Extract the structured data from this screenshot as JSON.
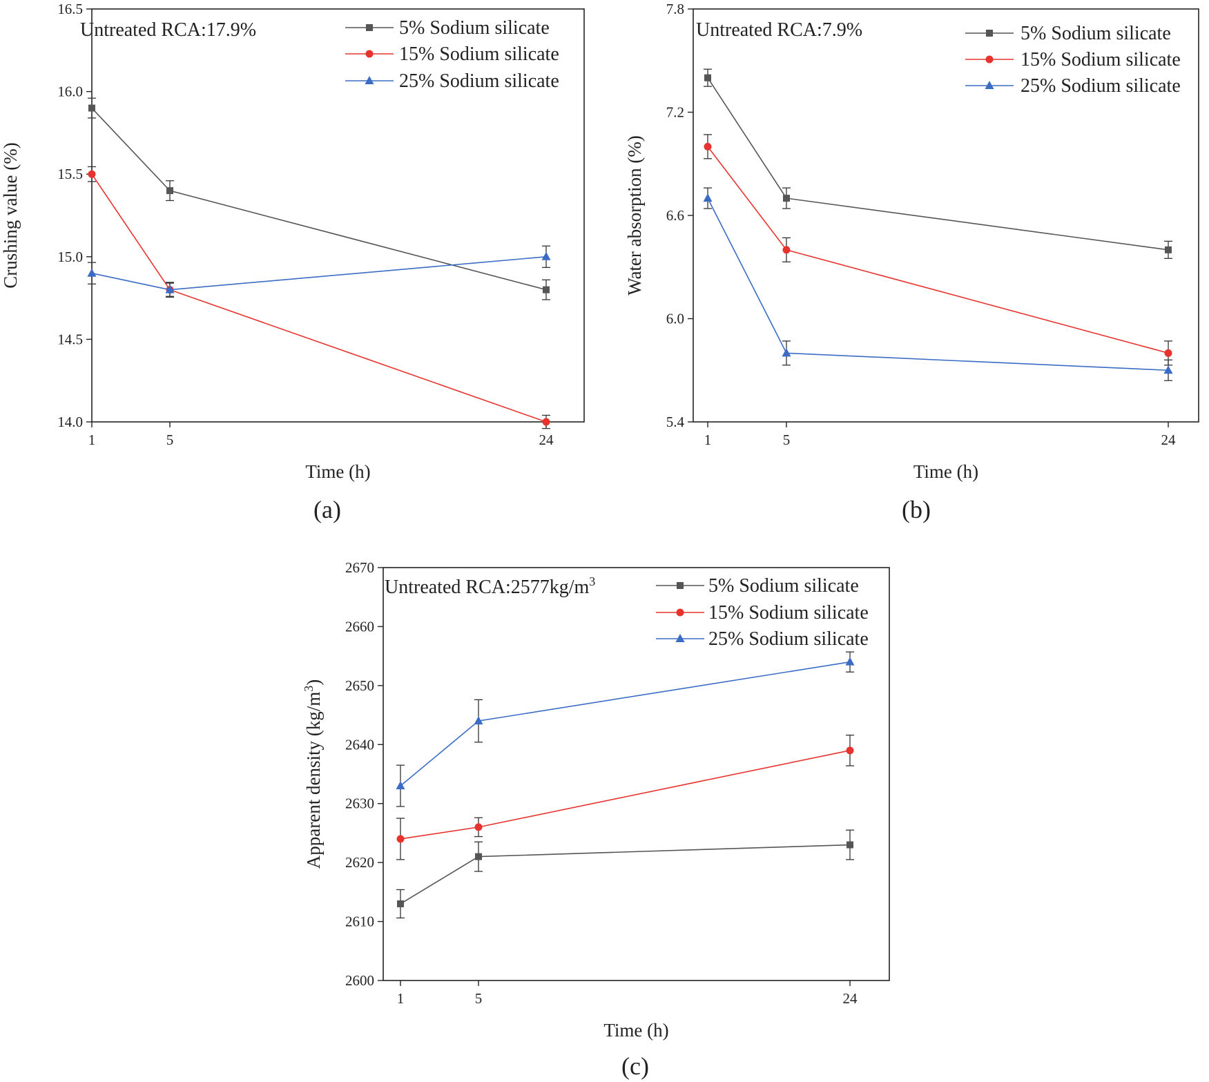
{
  "chart_data": [
    {
      "type": "line",
      "panel_label": "(a)",
      "annotation": "Untreated RCA:17.9%",
      "xlabel": "Time (h)",
      "ylabel": "Crushing value (%)",
      "x": [
        1,
        5,
        24
      ],
      "x_tick_labels": [
        "1",
        "5",
        "24"
      ],
      "ylim": [
        14.0,
        16.5
      ],
      "y_ticks": [
        14.0,
        14.5,
        15.0,
        15.5,
        16.0,
        16.5
      ],
      "y_tick_labels": [
        "14.0",
        "14.5",
        "15.0",
        "15.5",
        "16.0",
        "16.5"
      ],
      "legend_position": "top-right",
      "series": [
        {
          "name": "5% Sodium silicate",
          "values": [
            15.9,
            15.4,
            14.8
          ],
          "errors": [
            0.06,
            0.06,
            0.06
          ],
          "color": "#555555",
          "marker": "square"
        },
        {
          "name": "15% Sodium silicate",
          "values": [
            15.5,
            14.8,
            14.0
          ],
          "errors": [
            0.045,
            0.045,
            0.04
          ],
          "color": "#e8322d",
          "marker": "circle"
        },
        {
          "name": "25% Sodium silicate",
          "values": [
            14.9,
            14.8,
            15.0
          ],
          "errors": [
            0.065,
            0.04,
            0.065
          ],
          "color": "#3a6cc6",
          "marker": "triangle"
        }
      ]
    },
    {
      "type": "line",
      "panel_label": "(b)",
      "annotation": "Untreated RCA:7.9%",
      "xlabel": "Time (h)",
      "ylabel": "Water absorption (%)",
      "x": [
        1,
        5,
        24
      ],
      "x_tick_labels": [
        "1",
        "5",
        "24"
      ],
      "ylim": [
        5.4,
        7.8
      ],
      "y_ticks": [
        5.4,
        6.0,
        6.6,
        7.2,
        7.8
      ],
      "y_tick_labels": [
        "5.4",
        "6.0",
        "6.6",
        "7.2",
        "7.8"
      ],
      "legend_position": "top-right",
      "series": [
        {
          "name": "5% Sodium silicate",
          "values": [
            7.4,
            6.7,
            6.4
          ],
          "errors": [
            0.05,
            0.06,
            0.05
          ],
          "color": "#555555",
          "marker": "square"
        },
        {
          "name": "15% Sodium silicate",
          "values": [
            7.0,
            6.4,
            5.8
          ],
          "errors": [
            0.07,
            0.07,
            0.07
          ],
          "color": "#e8322d",
          "marker": "circle"
        },
        {
          "name": "25% Sodium silicate",
          "values": [
            6.7,
            5.8,
            5.7
          ],
          "errors": [
            0.06,
            0.07,
            0.06
          ],
          "color": "#3a6cc6",
          "marker": "triangle"
        }
      ]
    },
    {
      "type": "line",
      "panel_label": "(c)",
      "annotation": "Untreated RCA:2577kg/m",
      "annotation_sup": "3",
      "xlabel": "Time (h)",
      "ylabel": "Apparent density (kg/m",
      "ylabel_sup": "3",
      "ylabel_end": ")",
      "x": [
        1,
        5,
        24
      ],
      "x_tick_labels": [
        "1",
        "5",
        "24"
      ],
      "ylim": [
        2600,
        2670
      ],
      "y_ticks": [
        2600,
        2610,
        2620,
        2630,
        2640,
        2650,
        2660,
        2670
      ],
      "y_tick_labels": [
        "2600",
        "2610",
        "2620",
        "2630",
        "2640",
        "2650",
        "2660",
        "2670"
      ],
      "legend_position": "top-right",
      "series": [
        {
          "name": "5% Sodium silicate",
          "values": [
            2613,
            2621,
            2623
          ],
          "errors": [
            2.4,
            2.5,
            2.5
          ],
          "color": "#555555",
          "marker": "square"
        },
        {
          "name": "15% Sodium silicate",
          "values": [
            2624,
            2626,
            2639
          ],
          "errors": [
            3.5,
            1.6,
            2.6
          ],
          "color": "#e8322d",
          "marker": "circle"
        },
        {
          "name": "25% Sodium silicate",
          "values": [
            2633,
            2644,
            2654
          ],
          "errors": [
            3.5,
            3.6,
            1.7
          ],
          "color": "#3a6cc6",
          "marker": "triangle"
        }
      ]
    }
  ]
}
